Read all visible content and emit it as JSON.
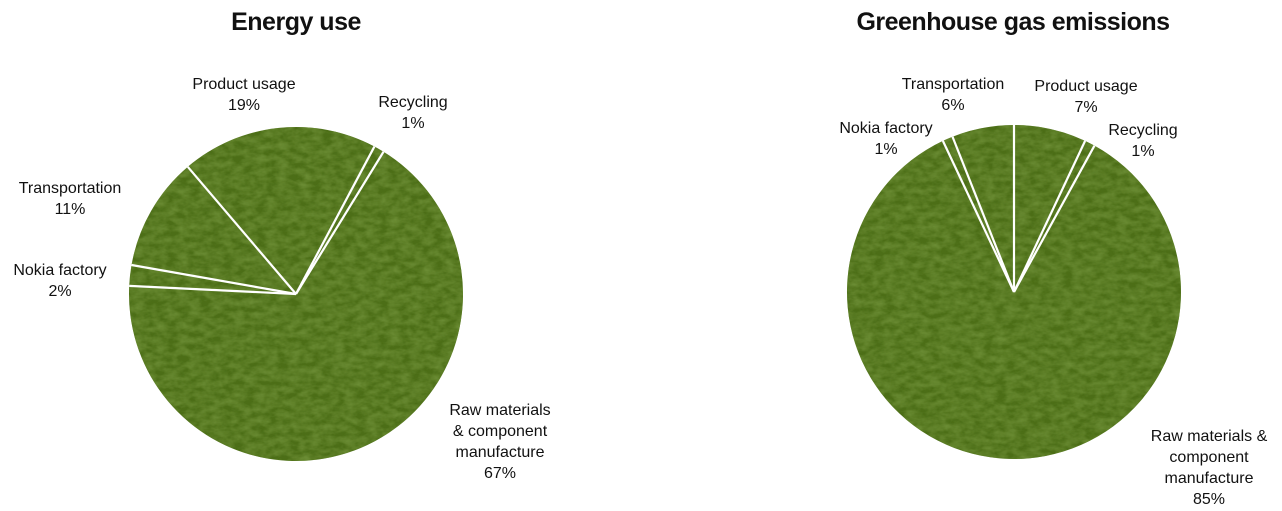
{
  "colors": {
    "grass_dark": "#2f4a0d",
    "grass_mid": "#4c6e17",
    "grass_light": "#7fa035",
    "divider": "#ffffff"
  },
  "chart_data": [
    {
      "type": "pie",
      "title": "Energy use",
      "slices": [
        {
          "label": "Recycling",
          "value": 1
        },
        {
          "label": "Raw materials & component manufacture",
          "label_lines": [
            "Raw materials",
            "& component",
            "manufacture"
          ],
          "value": 67
        },
        {
          "label": "Nokia factory",
          "value": 2
        },
        {
          "label": "Transportation",
          "value": 11
        },
        {
          "label": "Product usage",
          "value": 19
        }
      ],
      "unit": "%"
    },
    {
      "type": "pie",
      "title": "Greenhouse gas emissions",
      "slices": [
        {
          "label": "Product usage",
          "value": 7
        },
        {
          "label": "Recycling",
          "value": 1
        },
        {
          "label": "Raw materials & component manufacture",
          "label_lines": [
            "Raw materials &",
            "component",
            "manufacture"
          ],
          "value": 85
        },
        {
          "label": "Nokia factory",
          "value": 1
        },
        {
          "label": "Transportation",
          "value": 6
        }
      ],
      "unit": "%"
    }
  ]
}
